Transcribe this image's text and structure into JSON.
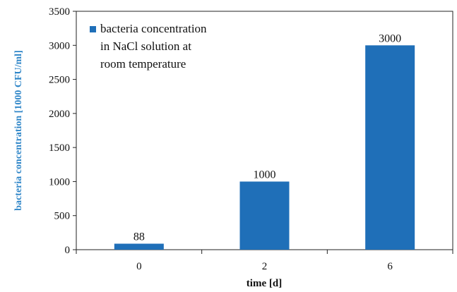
{
  "chart_data": {
    "type": "bar",
    "categories": [
      "0",
      "2",
      "6"
    ],
    "values": [
      88,
      1000,
      3000
    ],
    "data_labels": [
      "88",
      "1000",
      "3000"
    ],
    "title": "",
    "xlabel": "time [d]",
    "ylabel": "bacteria concentration  [1000 CFU/ml]",
    "ylim": [
      0,
      3500
    ],
    "yticks": [
      "0",
      "500",
      "1000",
      "1500",
      "2000",
      "2500",
      "3000",
      "3500"
    ],
    "grid": false,
    "legend": {
      "placement": "top-left",
      "lines": [
        "bacteria concentration",
        "in NaCl solution at",
        "room temperature"
      ]
    },
    "colors": {
      "bar": "#1f6fb8",
      "ylabel": "#2f86c8",
      "axis": "#222222"
    }
  }
}
